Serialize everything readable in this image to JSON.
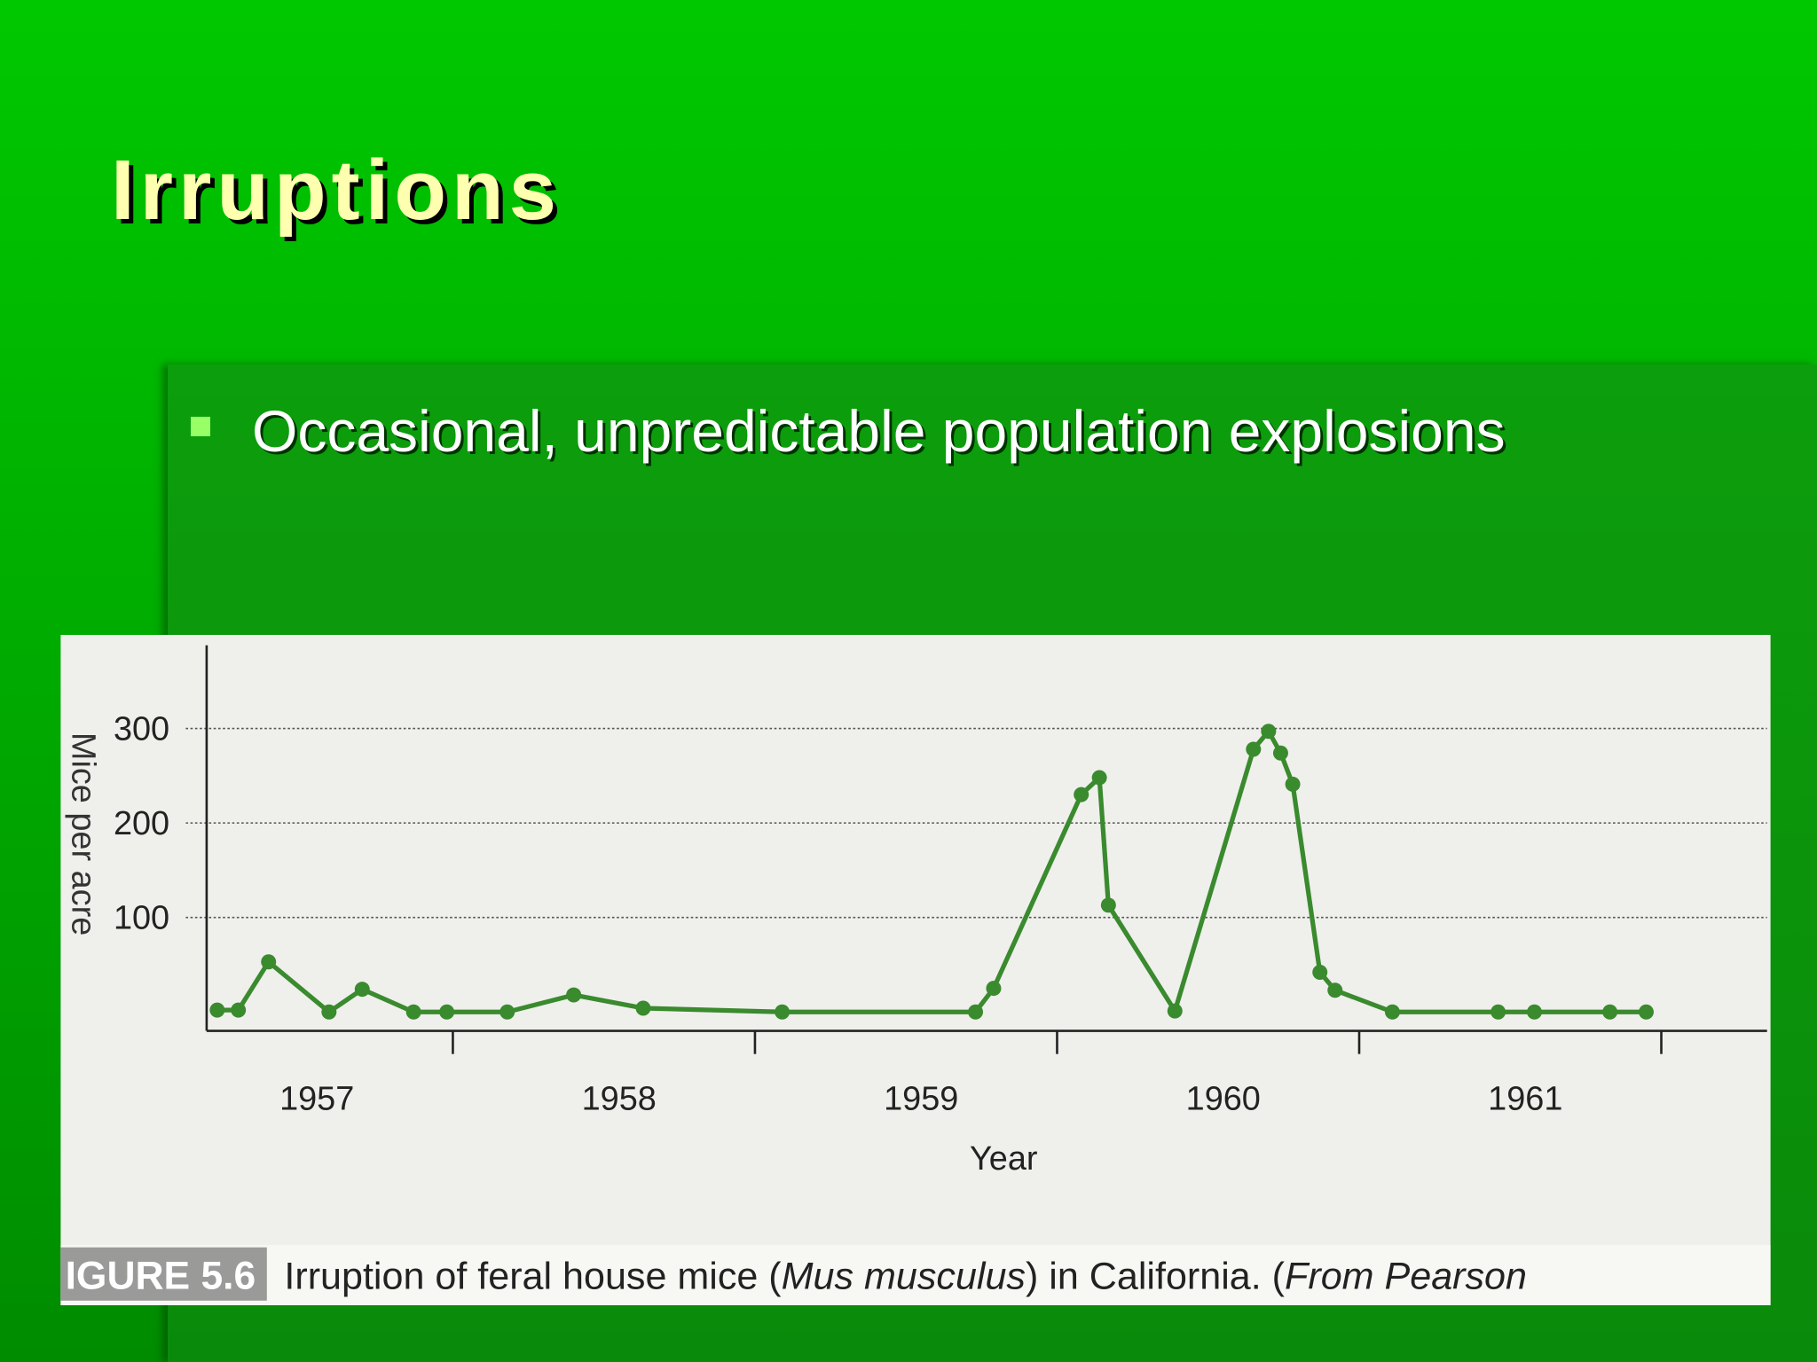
{
  "slide": {
    "title": "Irruptions",
    "bullets": [
      "Occasional, unpredictable population explosions"
    ]
  },
  "chart_data": {
    "type": "line",
    "xlabel": "Year",
    "ylabel": "Mice per acre",
    "figure_label": "IGURE 5.6",
    "caption": [
      "Irruption of feral house mice (",
      "Mus musculus",
      ") in California. (",
      "From Pearson"
    ],
    "x": [
      1957.22,
      1957.29,
      1957.39,
      1957.59,
      1957.7,
      1957.87,
      1957.98,
      1958.18,
      1958.4,
      1958.63,
      1959.09,
      1959.73,
      1959.79,
      1960.08,
      1960.14,
      1960.17,
      1960.39,
      1960.65,
      1960.7,
      1960.74,
      1960.78,
      1960.87,
      1960.92,
      1961.11,
      1961.46,
      1961.58,
      1961.83,
      1961.95
    ],
    "values": [
      2,
      2,
      53,
      0,
      24,
      0,
      0,
      0,
      18,
      4,
      0,
      0,
      25,
      230,
      248,
      113,
      1,
      278,
      297,
      274,
      241,
      42,
      23,
      0,
      0,
      0,
      0,
      0
    ],
    "color": "#3a8a2e",
    "xlim": [
      1957.185,
      1962.35
    ],
    "xticks": [
      {
        "value": 1957.55,
        "label": "1957"
      },
      {
        "value": 1958.55,
        "label": "1958"
      },
      {
        "value": 1959.55,
        "label": "1959"
      },
      {
        "value": 1960.55,
        "label": "1960"
      },
      {
        "value": 1961.55,
        "label": "1961"
      }
    ],
    "xminorticks": [
      1958,
      1959,
      1960,
      1961,
      1962
    ],
    "ylim": [
      -20,
      388
    ],
    "yticks": [
      100,
      200,
      300
    ],
    "grid": true
  }
}
